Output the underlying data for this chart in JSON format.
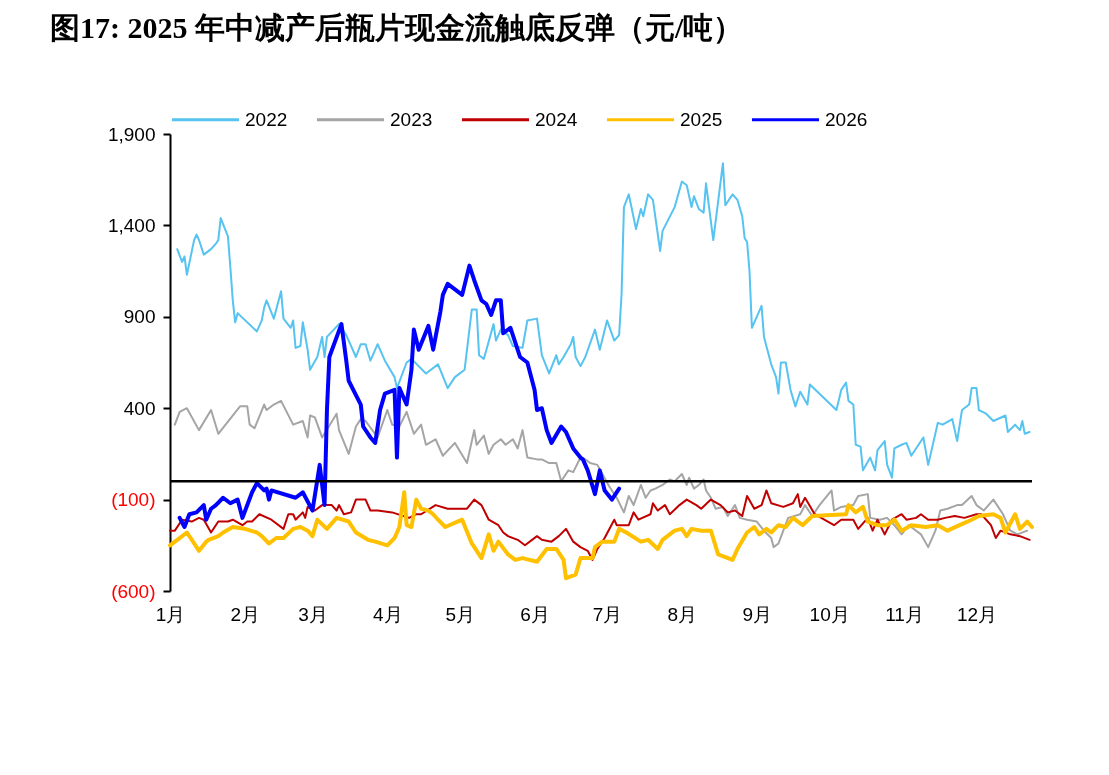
{
  "chart_data": {
    "type": "line",
    "title": "图17:  2025 年中减产后瓶片现金流触底反弹（元/吨）",
    "xlim": [
      "--01-01",
      "--12-24"
    ],
    "xticks": [
      {
        "value": "--01-01",
        "label": "1月"
      },
      {
        "value": "--02-01",
        "label": "2月"
      },
      {
        "value": "--03-01",
        "label": "3月"
      },
      {
        "value": "--04-01",
        "label": "4月"
      },
      {
        "value": "--05-01",
        "label": "5月"
      },
      {
        "value": "--06-01",
        "label": "6月"
      },
      {
        "value": "--07-01",
        "label": "7月"
      },
      {
        "value": "--08-01",
        "label": "8月"
      },
      {
        "value": "--09-01",
        "label": "9月"
      },
      {
        "value": "--10-01",
        "label": "10月"
      },
      {
        "value": "--11-01",
        "label": "11月"
      },
      {
        "value": "--12-01",
        "label": "12月"
      }
    ],
    "ylim": [
      -600,
      1900
    ],
    "yticks": [
      {
        "value": -600,
        "label": "(600)"
      },
      {
        "value": -100,
        "label": "(100)"
      },
      400,
      900,
      {
        "value": 1400,
        "label": "1,400"
      },
      {
        "value": 1900,
        "label": "1,900"
      }
    ],
    "legend": "top",
    "ref_lines": [
      {
        "axis": "y",
        "value": 0,
        "color": "#000000"
      }
    ],
    "series": [
      {
        "name": "2022",
        "color": "#56c3f0",
        "x": [
          "--01-04",
          "--01-06",
          "--01-07",
          "--01-08",
          "--01-11",
          "--01-12",
          "--01-13",
          "--01-15",
          "--01-18",
          "--01-20",
          "--01-21",
          "--01-22",
          "--01-25",
          "--01-26",
          "--01-27",
          "--01-28",
          "--01-29",
          "--02-06",
          "--02-08",
          "--02-09",
          "--02-10",
          "--02-13",
          "--02-16",
          "--02-17",
          "--02-20",
          "--02-21",
          "--02-22",
          "--02-24",
          "--02-25",
          "--02-27",
          "--02-28",
          "--03-03",
          "--03-05",
          "--03-06",
          "--03-07",
          "--03-12",
          "--03-15",
          "--03-19",
          "--03-21",
          "--03-23",
          "--03-25",
          "--03-28",
          "--03-31",
          "--04-04",
          "--04-05",
          "--04-09",
          "--04-11",
          "--04-17",
          "--04-22",
          "--04-26",
          "--04-29",
          "--05-03",
          "--05-06",
          "--05-08",
          "--05-09",
          "--05-11",
          "--05-15",
          "--05-16",
          "--05-18",
          "--05-21",
          "--05-23",
          "--05-27",
          "--05-29",
          "--06-02",
          "--06-04",
          "--06-07",
          "--06-10",
          "--06-11",
          "--06-13",
          "--06-16",
          "--06-17",
          "--06-18",
          "--06-20",
          "--06-22",
          "--06-26",
          "--06-28",
          "--07-01",
          "--07-04",
          "--07-06",
          "--07-07",
          "--07-08",
          "--07-10",
          "--07-13",
          "--07-15",
          "--07-16",
          "--07-18",
          "--07-20",
          "--07-23",
          "--07-24",
          "--07-29",
          "--08-01",
          "--08-03",
          "--08-05",
          "--08-06",
          "--08-08",
          "--08-10",
          "--08-11",
          "--08-14",
          "--08-18",
          "--08-19",
          "--08-22",
          "--08-24",
          "--08-26",
          "--08-27",
          "--08-28",
          "--08-29",
          "--08-30",
          "--09-01",
          "--09-03",
          "--09-04",
          "--09-07",
          "--09-09",
          "--09-10",
          "--09-11",
          "--09-13",
          "--09-15",
          "--09-17",
          "--09-19",
          "--09-22",
          "--09-23",
          "--10-04",
          "--10-06",
          "--10-08",
          "--10-09",
          "--10-11",
          "--10-12",
          "--10-14",
          "--10-15",
          "--10-18",
          "--10-20",
          "--10-21",
          "--10-24",
          "--10-25",
          "--10-27",
          "--10-28",
          "--10-31",
          "--11-02",
          "--11-04",
          "--11-09",
          "--11-11",
          "--11-15",
          "--11-17",
          "--11-21",
          "--11-23",
          "--11-25",
          "--11-28",
          "--11-29",
          "--12-01",
          "--12-02",
          "--12-05",
          "--12-08",
          "--12-13",
          "--12-14",
          "--12-17",
          "--12-19",
          "--12-20",
          "--12-21",
          "--12-23"
        ],
        "values": [
          1270,
          1200,
          1230,
          1130,
          1320,
          1350,
          1320,
          1240,
          1270,
          1300,
          1320,
          1440,
          1340,
          1170,
          990,
          870,
          920,
          820,
          880,
          950,
          990,
          890,
          1040,
          890,
          840,
          880,
          730,
          740,
          870,
          720,
          610,
          680,
          790,
          680,
          790,
          860,
          800,
          680,
          750,
          750,
          660,
          750,
          660,
          570,
          510,
          650,
          670,
          590,
          640,
          510,
          570,
          610,
          940,
          940,
          690,
          670,
          860,
          770,
          830,
          800,
          740,
          730,
          880,
          890,
          690,
          590,
          690,
          640,
          680,
          750,
          790,
          680,
          630,
          680,
          830,
          720,
          880,
          770,
          800,
          1020,
          1500,
          1570,
          1380,
          1490,
          1450,
          1570,
          1540,
          1260,
          1370,
          1500,
          1640,
          1620,
          1500,
          1560,
          1490,
          1470,
          1630,
          1320,
          1740,
          1510,
          1570,
          1540,
          1450,
          1330,
          1310,
          1150,
          840,
          900,
          960,
          790,
          640,
          570,
          480,
          650,
          650,
          500,
          410,
          490,
          420,
          530,
          390,
          500,
          540,
          440,
          420,
          200,
          190,
          60,
          130,
          60,
          170,
          220,
          90,
          20,
          180,
          200,
          210,
          140,
          240,
          90,
          320,
          310,
          340,
          220,
          390,
          420,
          510,
          510,
          390,
          370,
          330,
          360,
          270,
          310,
          280,
          330,
          260,
          270
        ]
      },
      {
        "name": "2023",
        "color": "#a5a5a5",
        "x": [
          "--01-03",
          "--01-05",
          "--01-08",
          "--01-13",
          "--01-18",
          "--01-21",
          "--01-30",
          "--02-02",
          "--02-03",
          "--02-05",
          "--02-09",
          "--02-10",
          "--02-13",
          "--02-16",
          "--02-21",
          "--02-25",
          "--02-27",
          "--02-28",
          "--03-02",
          "--03-05",
          "--03-11",
          "--03-12",
          "--03-16",
          "--03-19",
          "--03-21",
          "--03-23",
          "--03-28",
          "--04-01",
          "--04-03",
          "--04-06",
          "--04-09",
          "--04-12",
          "--04-15",
          "--04-17",
          "--04-21",
          "--04-24",
          "--04-29",
          "--05-04",
          "--05-07",
          "--05-08",
          "--05-11",
          "--05-13",
          "--05-15",
          "--05-18",
          "--05-20",
          "--05-23",
          "--05-25",
          "--05-27",
          "--05-29",
          "--06-02",
          "--06-04",
          "--06-07",
          "--06-10",
          "--06-12",
          "--06-15",
          "--06-17",
          "--06-20",
          "--06-22",
          "--06-24",
          "--06-27",
          "--07-02",
          "--07-05",
          "--07-08",
          "--07-10",
          "--07-12",
          "--07-15",
          "--07-17",
          "--07-19",
          "--07-21",
          "--07-24",
          "--07-27",
          "--07-29",
          "--08-01",
          "--08-03",
          "--08-04",
          "--08-06",
          "--08-08",
          "--08-10",
          "--08-11",
          "--08-13",
          "--08-15",
          "--08-18",
          "--08-20",
          "--08-23",
          "--08-25",
          "--08-28",
          "--09-01",
          "--09-04",
          "--09-07",
          "--09-08",
          "--09-10",
          "--09-12",
          "--09-14",
          "--09-19",
          "--09-21",
          "--09-24",
          "--09-27",
          "--10-02",
          "--10-03",
          "--10-06",
          "--10-11",
          "--10-13",
          "--10-17",
          "--10-18",
          "--10-22",
          "--10-25",
          "--10-28",
          "--10-31",
          "--11-03",
          "--11-08",
          "--11-11",
          "--11-14",
          "--11-16",
          "--11-19",
          "--11-23",
          "--11-25",
          "--11-29",
          "--12-01",
          "--12-04",
          "--12-08",
          "--12-12",
          "--12-15",
          "--12-18",
          "--12-22"
        ],
        "values": [
          310,
          380,
          400,
          280,
          390,
          260,
          410,
          410,
          310,
          290,
          420,
          390,
          420,
          440,
          310,
          330,
          240,
          360,
          350,
          240,
          370,
          280,
          150,
          300,
          340,
          330,
          240,
          390,
          310,
          300,
          380,
          260,
          310,
          200,
          230,
          140,
          210,
          100,
          280,
          200,
          250,
          150,
          200,
          230,
          200,
          230,
          180,
          280,
          130,
          120,
          120,
          100,
          100,
          0,
          60,
          50,
          130,
          120,
          100,
          90,
          -30,
          -90,
          -170,
          -80,
          -130,
          -20,
          -90,
          -50,
          -40,
          -20,
          10,
          0,
          40,
          -20,
          20,
          -40,
          -20,
          10,
          -50,
          -90,
          -150,
          -140,
          -190,
          -130,
          -200,
          -210,
          -220,
          -270,
          -310,
          -360,
          -340,
          -270,
          -200,
          -180,
          -130,
          -190,
          -130,
          -50,
          -160,
          -140,
          -130,
          -80,
          -70,
          -200,
          -210,
          -200,
          -240,
          -290,
          -240,
          -290,
          -360,
          -270,
          -160,
          -150,
          -130,
          -130,
          -80,
          -130,
          -160,
          -100,
          -180,
          -270,
          -290,
          -270
        ]
      },
      {
        "name": "2024",
        "color": "#c00000",
        "x": [
          "--01-01",
          "--01-03",
          "--01-06",
          "--01-10",
          "--01-13",
          "--01-15",
          "--01-18",
          "--01-21",
          "--01-25",
          "--01-27",
          "--01-31",
          "--02-02",
          "--02-04",
          "--02-07",
          "--02-12",
          "--02-17",
          "--02-19",
          "--02-21",
          "--02-22",
          "--02-25",
          "--02-26",
          "--02-27",
          "--03-02",
          "--03-05",
          "--03-09",
          "--03-11",
          "--03-12",
          "--03-14",
          "--03-17",
          "--03-19",
          "--03-23",
          "--03-25",
          "--03-28",
          "--04-03",
          "--04-10",
          "--04-13",
          "--04-15",
          "--04-21",
          "--04-26",
          "--05-04",
          "--05-07",
          "--05-10",
          "--05-13",
          "--05-17",
          "--05-19",
          "--05-21",
          "--05-25",
          "--05-28",
          "--06-02",
          "--06-04",
          "--06-08",
          "--06-11",
          "--06-14",
          "--06-17",
          "--06-20",
          "--06-23",
          "--06-25",
          "--06-27",
          "--06-30",
          "--07-04",
          "--07-05",
          "--07-10",
          "--07-12",
          "--07-14",
          "--07-19",
          "--07-20",
          "--07-22",
          "--07-25",
          "--07-27",
          "--07-31",
          "--08-03",
          "--08-07",
          "--08-09",
          "--08-13",
          "--08-17",
          "--08-20",
          "--08-23",
          "--08-26",
          "--08-28",
          "--08-31",
          "--09-03",
          "--09-05",
          "--09-07",
          "--09-12",
          "--09-16",
          "--09-18",
          "--09-19",
          "--09-21",
          "--09-25",
          "--10-03",
          "--10-06",
          "--10-11",
          "--10-13",
          "--10-17",
          "--10-19",
          "--10-21",
          "--10-24",
          "--10-27",
          "--10-31",
          "--11-02",
          "--11-06",
          "--11-08",
          "--11-11",
          "--11-15",
          "--11-18",
          "--11-22",
          "--11-26",
          "--12-01",
          "--12-03",
          "--12-07",
          "--12-09",
          "--12-11",
          "--12-15",
          "--12-19",
          "--12-23"
        ],
        "values": [
          -270,
          -270,
          -210,
          -220,
          -200,
          -210,
          -280,
          -220,
          -220,
          -210,
          -240,
          -220,
          -220,
          -180,
          -210,
          -260,
          -180,
          -180,
          -210,
          -170,
          -200,
          -140,
          -160,
          -130,
          -130,
          -160,
          -130,
          -180,
          -170,
          -100,
          -100,
          -160,
          -160,
          -170,
          -200,
          -180,
          -180,
          -130,
          -150,
          -150,
          -100,
          -130,
          -210,
          -240,
          -280,
          -300,
          -320,
          -350,
          -300,
          -320,
          -330,
          -300,
          -260,
          -330,
          -360,
          -380,
          -430,
          -370,
          -310,
          -210,
          -240,
          -240,
          -170,
          -210,
          -180,
          -120,
          -160,
          -130,
          -180,
          -130,
          -100,
          -130,
          -150,
          -100,
          -130,
          -170,
          -160,
          -190,
          -80,
          -150,
          -130,
          -50,
          -120,
          -140,
          -120,
          -70,
          -140,
          -90,
          -180,
          -240,
          -210,
          -210,
          -260,
          -200,
          -270,
          -210,
          -290,
          -210,
          -180,
          -210,
          -200,
          -180,
          -210,
          -210,
          -200,
          -190,
          -200,
          -180,
          -180,
          -240,
          -310,
          -270,
          -290,
          -300,
          -320
        ]
      },
      {
        "name": "2025",
        "color": "#ffc000",
        "x": [
          "--01-01",
          "--01-04",
          "--01-08",
          "--01-11",
          "--01-13",
          "--01-16",
          "--01-17",
          "--01-21",
          "--01-23",
          "--01-27",
          "--02-01",
          "--02-06",
          "--02-08",
          "--02-11",
          "--02-14",
          "--02-17",
          "--02-21",
          "--02-24",
          "--02-27",
          "--03-01",
          "--03-03",
          "--03-07",
          "--03-11",
          "--03-16",
          "--03-19",
          "--03-24",
          "--03-27",
          "--04-01",
          "--04-04",
          "--04-06",
          "--04-08",
          "--04-09",
          "--04-11",
          "--04-13",
          "--04-15",
          "--04-18",
          "--04-20",
          "--04-22",
          "--04-25",
          "--05-02",
          "--05-06",
          "--05-10",
          "--05-13",
          "--05-15",
          "--05-17",
          "--05-21",
          "--05-24",
          "--05-27",
          "--06-02",
          "--06-06",
          "--06-10",
          "--06-13",
          "--06-14",
          "--06-18",
          "--06-20",
          "--06-25",
          "--06-26",
          "--06-29",
          "--07-04",
          "--07-06",
          "--07-09",
          "--07-15",
          "--07-18",
          "--07-22",
          "--07-24",
          "--07-29",
          "--08-01",
          "--08-03",
          "--08-05",
          "--08-09",
          "--08-13",
          "--08-16",
          "--08-22",
          "--08-24",
          "--08-28",
          "--08-31",
          "--09-02",
          "--09-05",
          "--09-07",
          "--09-10",
          "--09-13",
          "--09-16",
          "--09-20",
          "--09-24",
          "--10-08",
          "--10-09",
          "--10-12",
          "--10-15",
          "--10-17",
          "--10-21",
          "--10-25",
          "--10-28",
          "--10-31",
          "--11-04",
          "--11-10",
          "--11-15",
          "--11-19",
          "--11-24",
          "--11-29",
          "--12-02",
          "--12-08",
          "--12-11",
          "--12-13",
          "--12-17",
          "--12-19",
          "--12-22",
          "--12-24"
        ],
        "values": [
          -350,
          -320,
          -280,
          -340,
          -380,
          -330,
          -320,
          -300,
          -280,
          -250,
          -260,
          -280,
          -300,
          -340,
          -310,
          -310,
          -260,
          -250,
          -270,
          -300,
          -210,
          -260,
          -200,
          -220,
          -280,
          -320,
          -330,
          -350,
          -310,
          -250,
          -60,
          -240,
          -250,
          -100,
          -150,
          -160,
          -180,
          -210,
          -250,
          -210,
          -340,
          -420,
          -290,
          -380,
          -330,
          -400,
          -430,
          -420,
          -440,
          -370,
          -370,
          -430,
          -530,
          -510,
          -420,
          -420,
          -360,
          -330,
          -330,
          -260,
          -280,
          -330,
          -320,
          -370,
          -320,
          -270,
          -260,
          -300,
          -260,
          -270,
          -270,
          -400,
          -430,
          -370,
          -280,
          -250,
          -290,
          -260,
          -280,
          -240,
          -250,
          -200,
          -240,
          -190,
          -180,
          -130,
          -170,
          -140,
          -220,
          -240,
          -240,
          -210,
          -270,
          -240,
          -250,
          -240,
          -270,
          -240,
          -210,
          -190,
          -180,
          -200,
          -280,
          -180,
          -260,
          -220,
          -250
        ]
      },
      {
        "name": "2026",
        "color": "#0000ff",
        "x": [
          "--01-05",
          "--01-07",
          "--01-09",
          "--01-12",
          "--01-15",
          "--01-16",
          "--01-18",
          "--01-20",
          "--01-23",
          "--01-26",
          "--01-29",
          "--01-31",
          "--02-04",
          "--02-06",
          "--02-09",
          "--02-10",
          "--02-11",
          "--02-12",
          "--02-22",
          "--02-25",
          "--03-01",
          "--03-04",
          "--03-06",
          "--03-07",
          "--03-08",
          "--03-13",
          "--03-15",
          "--03-16",
          "--03-21",
          "--03-22",
          "--03-25",
          "--03-27",
          "--03-29",
          "--03-31",
          "--04-04",
          "--04-05",
          "--04-06",
          "--04-09",
          "--04-11",
          "--04-12",
          "--04-14",
          "--04-18",
          "--04-20",
          "--04-23",
          "--04-24",
          "--04-26",
          "--05-02",
          "--05-05",
          "--05-07",
          "--05-10",
          "--05-12",
          "--05-14",
          "--05-16",
          "--05-18",
          "--05-19",
          "--05-22",
          "--05-26",
          "--05-29",
          "--06-01",
          "--06-02",
          "--06-04",
          "--06-06",
          "--06-08",
          "--06-12",
          "--06-14",
          "--06-17",
          "--06-20",
          "--06-21",
          "--06-23",
          "--06-26",
          "--06-28",
          "--06-30",
          "--07-03",
          "--07-06"
        ],
        "values": [
          -200,
          -250,
          -180,
          -170,
          -130,
          -210,
          -150,
          -130,
          -90,
          -120,
          -100,
          -200,
          -60,
          -10,
          -50,
          -40,
          -100,
          -50,
          -90,
          -60,
          -160,
          90,
          -130,
          390,
          680,
          860,
          660,
          550,
          420,
          300,
          240,
          210,
          390,
          480,
          500,
          130,
          510,
          420,
          610,
          830,
          720,
          850,
          720,
          930,
          1020,
          1080,
          1020,
          1180,
          1100,
          990,
          970,
          910,
          990,
          990,
          810,
          840,
          680,
          650,
          500,
          390,
          400,
          280,
          210,
          300,
          270,
          180,
          130,
          120,
          60,
          -70,
          60,
          -50,
          -100,
          -40
        ]
      }
    ]
  }
}
